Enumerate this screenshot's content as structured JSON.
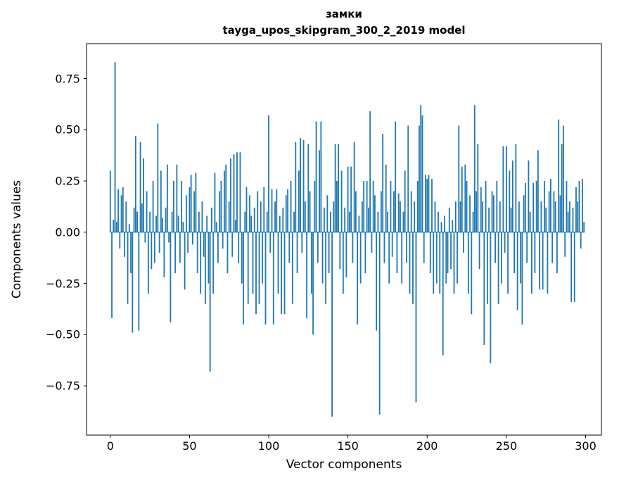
{
  "figure": {
    "title_line1": "замки",
    "title_line2": "tayga_upos_skipgram_300_2_2019 model",
    "xlabel": "Vector components",
    "ylabel": "Components values"
  },
  "chart_data": {
    "type": "bar",
    "title": "замки — tayga_upos_skipgram_300_2_2019 model",
    "xlabel": "Vector components",
    "ylabel": "Components values",
    "bar_color": "#1f77b4",
    "grid": false,
    "legend": "none",
    "xlim": [
      -15,
      310
    ],
    "ylim": [
      -0.99,
      0.92
    ],
    "xticks": [
      0,
      50,
      100,
      150,
      200,
      250,
      300
    ],
    "yticks": [
      -0.75,
      -0.5,
      -0.25,
      0,
      0.25,
      0.5,
      0.75
    ],
    "ytick_labels": [
      "−0.75",
      "−0.50",
      "−0.25",
      "0.00",
      "0.25",
      "0.50",
      "0.75"
    ],
    "values": [
      0.3,
      -0.42,
      0.06,
      0.83,
      0.05,
      0.21,
      -0.08,
      0.18,
      0.22,
      -0.12,
      0.15,
      -0.35,
      0.04,
      -0.2,
      -0.49,
      0.12,
      0.47,
      0.1,
      -0.48,
      0.44,
      0.14,
      0.36,
      -0.05,
      0.2,
      -0.3,
      0.1,
      -0.18,
      0.25,
      -0.15,
      0.08,
      0.53,
      -0.1,
      0.3,
      0.07,
      -0.22,
      0.12,
      0.33,
      -0.05,
      -0.44,
      0.1,
      0.25,
      -0.2,
      0.33,
      0.08,
      -0.15,
      0.25,
      0.05,
      -0.28,
      0.18,
      -0.1,
      0.22,
      0.28,
      -0.06,
      0.2,
      0.29,
      -0.2,
      0.1,
      -0.3,
      0.15,
      -0.12,
      -0.35,
      0.08,
      -0.25,
      -0.68,
      0.12,
      -0.3,
      0.29,
      0.05,
      -0.15,
      0.2,
      0.25,
      -0.08,
      0.3,
      0.33,
      -0.2,
      0.15,
      0.36,
      -0.12,
      0.38,
      0.06,
      0.39,
      -0.15,
      0.39,
      -0.25,
      -0.45,
      0.1,
      0.22,
      -0.35,
      0.18,
      0.08,
      -0.3,
      0.12,
      -0.4,
      0.2,
      -0.35,
      0.15,
      -0.25,
      0.22,
      -0.45,
      0.1,
      0.57,
      -0.1,
      0.21,
      -0.45,
      0.15,
      0.21,
      -0.3,
      0.08,
      -0.4,
      0.12,
      -0.4,
      0.18,
      0.21,
      -0.15,
      0.25,
      -0.35,
      0.1,
      0.44,
      -0.2,
      0.3,
      0.46,
      -0.1,
      0.45,
      0.15,
      -0.42,
      0.43,
      0.2,
      -0.3,
      -0.5,
      0.25,
      0.54,
      -0.15,
      0.4,
      0.54,
      -0.25,
      0.12,
      -0.35,
      0.18,
      -0.2,
      0.1,
      -0.9,
      0.15,
      0.43,
      0.25,
      0.43,
      -0.18,
      0.3,
      -0.3,
      0.12,
      -0.22,
      0.32,
      0.1,
      0.32,
      -0.15,
      0.44,
      0.2,
      -0.45,
      0.08,
      -0.25,
      0.15,
      0.25,
      -0.2,
      0.25,
      0.12,
      0.59,
      -0.1,
      0.25,
      0.18,
      -0.48,
      0.1,
      -0.89,
      0.2,
      0.48,
      -0.15,
      0.33,
      0.1,
      -0.25,
      0.25,
      -0.12,
      0.2,
      0.54,
      -0.2,
      0.19,
      0.15,
      -0.25,
      0.1,
      0.3,
      -0.15,
      0.52,
      -0.3,
      0.2,
      -0.35,
      0.15,
      -0.83,
      0.25,
      0.52,
      0.62,
      0.57,
      -0.15,
      0.28,
      0.26,
      0.28,
      -0.2,
      0.26,
      -0.3,
      0.15,
      -0.25,
      0.1,
      -0.3,
      0.05,
      -0.6,
      0.08,
      -0.25,
      -0.2,
      0.12,
      -0.18,
      0.06,
      -0.3,
      0.15,
      -0.25,
      0.52,
      0.15,
      0.32,
      -0.1,
      0.33,
      0.25,
      -0.3,
      0.18,
      -0.4,
      0.1,
      0.62,
      0.2,
      0.43,
      -0.18,
      0.22,
      0.15,
      -0.55,
      0.25,
      -0.35,
      0.12,
      -0.64,
      0.2,
      0.18,
      -0.15,
      0.25,
      -0.35,
      0.15,
      -0.25,
      0.42,
      -0.1,
      0.42,
      -0.3,
      0.3,
      0.12,
      0.35,
      -0.2,
      0.43,
      -0.38,
      0.15,
      -0.25,
      -0.45,
      0.18,
      0.24,
      -0.15,
      0.35,
      0.1,
      -0.3,
      0.24,
      -0.2,
      0.25,
      0.4,
      -0.28,
      0.15,
      -0.28,
      0.25,
      0.12,
      -0.3,
      0.2,
      0.26,
      -0.15,
      0.2,
      0.15,
      -0.2,
      0.55,
      0.18,
      0.43,
      0.52,
      -0.12,
      0.25,
      0.1,
      0.15,
      -0.34,
      0.12,
      -0.34,
      0.22,
      0.15,
      0.25,
      -0.08,
      0.26,
      0.05
    ]
  }
}
